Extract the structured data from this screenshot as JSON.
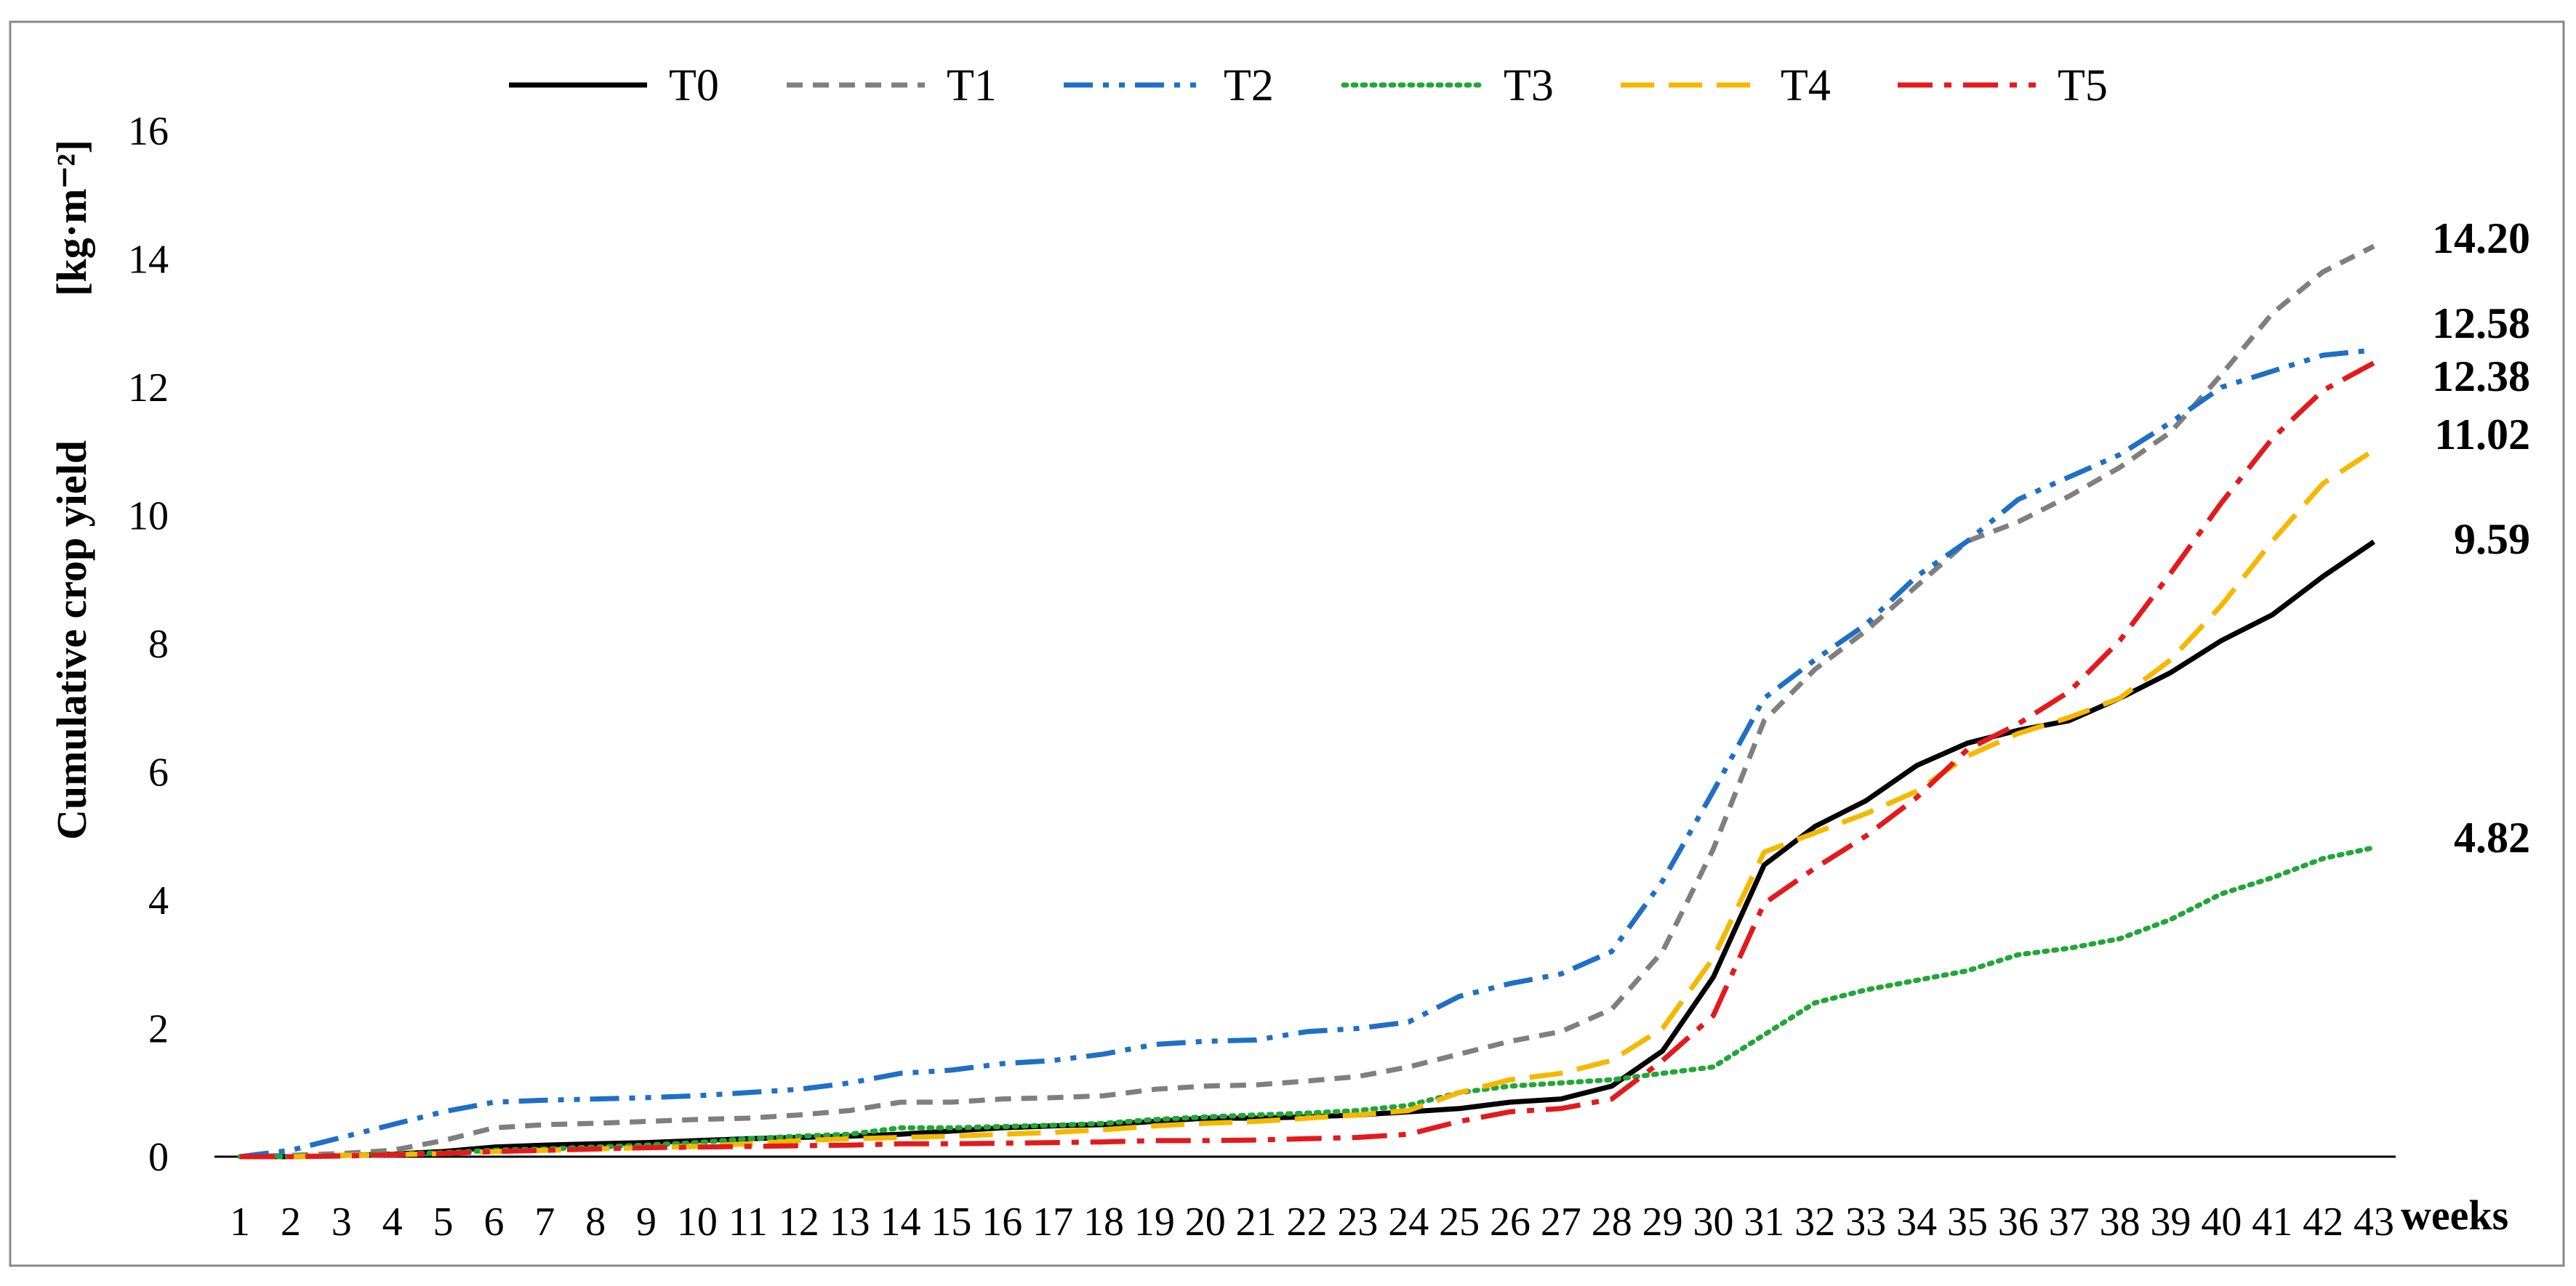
{
  "chart_data": {
    "type": "line",
    "x": [
      1,
      2,
      3,
      4,
      5,
      6,
      7,
      8,
      9,
      10,
      11,
      12,
      13,
      14,
      15,
      16,
      17,
      18,
      19,
      20,
      21,
      22,
      23,
      24,
      25,
      26,
      27,
      28,
      29,
      30,
      31,
      32,
      33,
      34,
      35,
      36,
      37,
      38,
      39,
      40,
      41,
      42,
      43
    ],
    "xlabel": "weeks",
    "ylabel": "Cumulative crop yield",
    "yunit": "[kg·m⁻²]",
    "ylim": [
      0,
      16
    ],
    "yticks": [
      0,
      2,
      4,
      6,
      8,
      10,
      12,
      14,
      16
    ],
    "grid": false,
    "legend_position": "top",
    "series": [
      {
        "name": "T0",
        "color": "#000000",
        "dash": "solid",
        "end_label": "9.59",
        "values": [
          0,
          0,
          0.02,
          0.04,
          0.08,
          0.15,
          0.18,
          0.2,
          0.22,
          0.25,
          0.28,
          0.3,
          0.32,
          0.35,
          0.4,
          0.45,
          0.48,
          0.5,
          0.55,
          0.6,
          0.6,
          0.62,
          0.65,
          0.7,
          0.75,
          0.85,
          0.9,
          1.1,
          1.65,
          2.8,
          4.55,
          5.15,
          5.55,
          6.1,
          6.45,
          6.65,
          6.8,
          7.15,
          7.55,
          8.05,
          8.45,
          9.05,
          9.59
        ]
      },
      {
        "name": "T1",
        "color": "#7f7f7f",
        "dash": "dashed",
        "end_label": "14.20",
        "values": [
          0,
          0.02,
          0.05,
          0.1,
          0.25,
          0.45,
          0.5,
          0.52,
          0.55,
          0.58,
          0.6,
          0.65,
          0.72,
          0.85,
          0.85,
          0.9,
          0.92,
          0.95,
          1.05,
          1.1,
          1.12,
          1.18,
          1.25,
          1.4,
          1.6,
          1.8,
          1.95,
          2.3,
          3.2,
          4.8,
          6.8,
          7.6,
          8.2,
          8.9,
          9.6,
          9.9,
          10.3,
          10.75,
          11.3,
          12.2,
          13.15,
          13.8,
          14.2
        ]
      },
      {
        "name": "T2",
        "color": "#1f6fc5",
        "dash": "dashdotdot",
        "end_label": "12.58",
        "values": [
          0,
          0.1,
          0.3,
          0.5,
          0.7,
          0.85,
          0.88,
          0.9,
          0.92,
          0.95,
          1.0,
          1.05,
          1.15,
          1.3,
          1.35,
          1.45,
          1.5,
          1.6,
          1.75,
          1.8,
          1.82,
          1.95,
          2.0,
          2.1,
          2.5,
          2.7,
          2.85,
          3.2,
          4.3,
          5.7,
          7.15,
          7.75,
          8.3,
          9.05,
          9.6,
          10.25,
          10.6,
          10.95,
          11.45,
          12.0,
          12.25,
          12.5,
          12.58
        ]
      },
      {
        "name": "T3",
        "color": "#22a638",
        "dash": "dotted",
        "end_label": "4.82",
        "values": [
          0,
          0,
          0.02,
          0.04,
          0.06,
          0.1,
          0.12,
          0.15,
          0.18,
          0.22,
          0.28,
          0.32,
          0.35,
          0.45,
          0.45,
          0.47,
          0.49,
          0.52,
          0.58,
          0.62,
          0.65,
          0.68,
          0.72,
          0.8,
          1.0,
          1.1,
          1.15,
          1.2,
          1.3,
          1.4,
          1.9,
          2.4,
          2.6,
          2.75,
          2.9,
          3.15,
          3.25,
          3.4,
          3.7,
          4.1,
          4.35,
          4.65,
          4.82
        ]
      },
      {
        "name": "T4",
        "color": "#f5b800",
        "dash": "longdash",
        "end_label": "11.02",
        "values": [
          0,
          0,
          0.02,
          0.03,
          0.05,
          0.08,
          0.1,
          0.12,
          0.14,
          0.16,
          0.2,
          0.25,
          0.28,
          0.3,
          0.32,
          0.35,
          0.38,
          0.42,
          0.48,
          0.52,
          0.55,
          0.6,
          0.65,
          0.72,
          1.0,
          1.2,
          1.3,
          1.5,
          2.0,
          3.1,
          4.75,
          5.05,
          5.35,
          5.7,
          6.25,
          6.6,
          6.85,
          7.15,
          7.75,
          8.6,
          9.6,
          10.5,
          11.02
        ]
      },
      {
        "name": "T5",
        "color": "#e31a1c",
        "dash": "dashdot",
        "end_label": "12.38",
        "values": [
          0,
          0,
          0.01,
          0.03,
          0.05,
          0.08,
          0.1,
          0.12,
          0.14,
          0.15,
          0.16,
          0.17,
          0.18,
          0.2,
          0.2,
          0.21,
          0.22,
          0.23,
          0.25,
          0.25,
          0.26,
          0.28,
          0.3,
          0.35,
          0.55,
          0.7,
          0.75,
          0.9,
          1.5,
          2.2,
          3.95,
          4.5,
          5.0,
          5.6,
          6.35,
          6.75,
          7.25,
          8.05,
          9.1,
          10.2,
          11.2,
          11.95,
          12.38
        ]
      }
    ]
  }
}
